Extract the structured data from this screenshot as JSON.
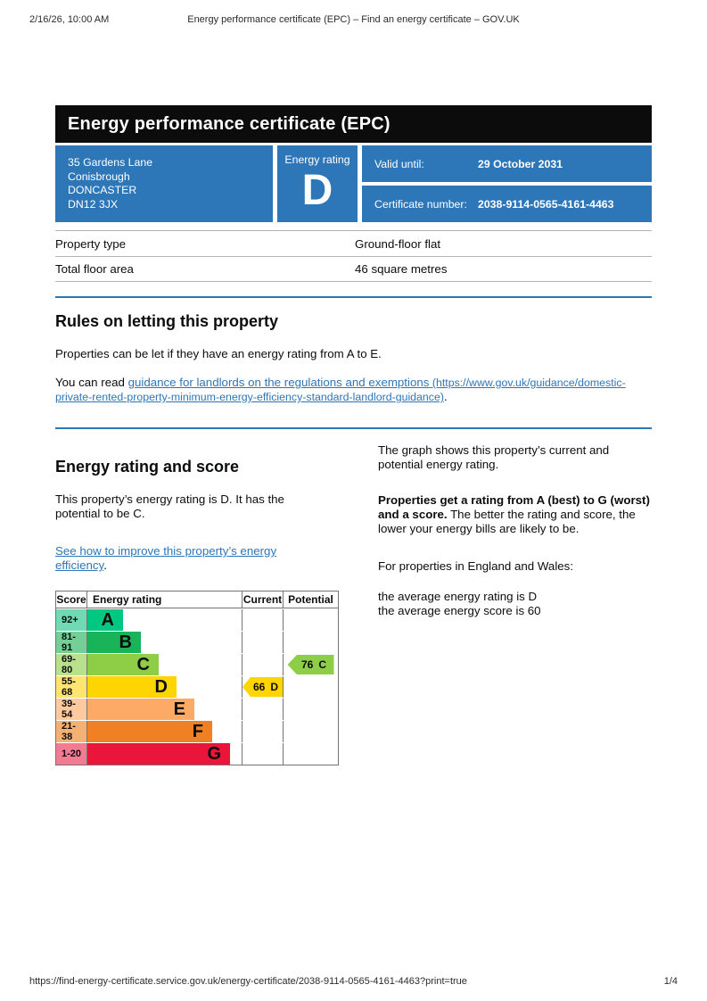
{
  "meta": {
    "date": "2/16/26, 10:00 AM",
    "doc_title": "Energy performance certificate (EPC) – Find an energy certificate – GOV.UK",
    "footer_url": "https://find-energy-certificate.service.gov.uk/energy-certificate/2038-9114-0565-4161-4463?print=true",
    "page_indicator": "1/4"
  },
  "banner": {
    "title": "Energy performance certificate (EPC)"
  },
  "summary": {
    "address_lines": [
      "35 Gardens Lane",
      "Conisbrough",
      "DONCASTER",
      "DN12 3JX"
    ],
    "rating_label": "Energy rating",
    "rating_value": "D",
    "valid_until_label": "Valid until:",
    "valid_until_value": "29 October 2031",
    "certificate_number_label": "Certificate number:",
    "certificate_number_value": "2038-9114-0565-4161-4463"
  },
  "property_facts": {
    "rows": [
      {
        "label": "Property type",
        "value": "Ground-floor flat"
      },
      {
        "label": "Total floor area",
        "value": "46 square metres"
      }
    ]
  },
  "letting_rules": {
    "heading": "Rules on letting this property",
    "paragraph1": "Properties can be let if they have an energy rating from A to E.",
    "paragraph2_prefix": "You can read ",
    "link_text": "guidance for landlords on the regulations and exemptions",
    "link_url_text": " (https://www.gov.uk/guidance/domestic-\nprivate-rented-property-minimum-energy-efficiency-standard-landlord-guidance)",
    "paragraph2_suffix": "."
  },
  "rating_section": {
    "heading": "Energy rating and score",
    "paragraph1": "This property’s energy rating is D. It has the\npotential to be C.",
    "improve_link_text": "See how to improve this property’s energy\nefficiency",
    "improve_link_suffix": ".",
    "right_paragraph1": "The graph shows this property’s current and\npotential energy rating.",
    "right_paragraph2_bold": "Properties get a rating from A (best) to G (worst)\nand a score.",
    "right_paragraph2_rest": " The better the rating and score, the\nlower your energy bills are likely to be.",
    "right_paragraph3": "For properties in England and Wales:",
    "right_paragraph4": "the average energy rating is D\nthe average energy score is 60"
  },
  "chart_data": {
    "type": "bar",
    "title": "Energy efficiency rating chart",
    "columns": [
      "Score",
      "Energy rating",
      "Current",
      "Potential"
    ],
    "bands": [
      {
        "letter": "A",
        "score_range": "92+",
        "score_min": 92,
        "score_max": 100,
        "color": "#00c781",
        "tint": "#6fdab4"
      },
      {
        "letter": "B",
        "score_range": "81-91",
        "score_min": 81,
        "score_max": 91,
        "color": "#19b459",
        "tint": "#74cf96"
      },
      {
        "letter": "C",
        "score_range": "69-80",
        "score_min": 69,
        "score_max": 80,
        "color": "#8dce46",
        "tint": "#b9e18d"
      },
      {
        "letter": "D",
        "score_range": "55-68",
        "score_min": 55,
        "score_max": 68,
        "color": "#ffd500",
        "tint": "#ffe570"
      },
      {
        "letter": "E",
        "score_range": "39-54",
        "score_min": 39,
        "score_max": 54,
        "color": "#fcaa65",
        "tint": "#fdc99e"
      },
      {
        "letter": "F",
        "score_range": "21-38",
        "score_min": 21,
        "score_max": 38,
        "color": "#ef8023",
        "tint": "#f5b173"
      },
      {
        "letter": "G",
        "score_range": "1-20",
        "score_min": 1,
        "score_max": 20,
        "color": "#e9153b",
        "tint": "#f27a92"
      }
    ],
    "current": {
      "score": "66",
      "band": "D",
      "row_index": 3,
      "color": "#ffd500"
    },
    "potential": {
      "score": "76",
      "band": "C",
      "row_index": 2,
      "color": "#8dce46"
    }
  },
  "colors": {
    "govuk_blue": "#2d76b8",
    "banner_black": "#0c0c0c",
    "border_grey": "#b1b4b6",
    "chart_border": "#757575"
  }
}
